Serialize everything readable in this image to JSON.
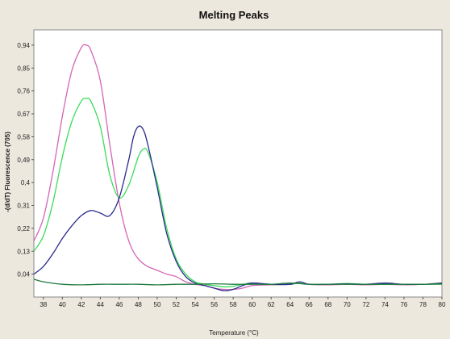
{
  "chart_data": {
    "type": "line",
    "title": "Melting Peaks",
    "xlabel": "Temperature (°C)",
    "ylabel": "-(d/dT) Fluorescence (705)",
    "xlim": [
      37,
      80
    ],
    "ylim": [
      -0.05,
      1.0
    ],
    "x_ticks": [
      "38",
      "40",
      "42",
      "44",
      "46",
      "48",
      "50",
      "52",
      "54",
      "56",
      "58",
      "60",
      "62",
      "64",
      "66",
      "68",
      "70",
      "72",
      "74",
      "76",
      "78",
      "80"
    ],
    "y_ticks": [
      "0,94",
      "0,85",
      "0,76",
      "0,67",
      "0,58",
      "0,49",
      "0,4",
      "0,31",
      "0,22",
      "0,13",
      "0,04"
    ],
    "y_tick_values": [
      0.94,
      0.85,
      0.76,
      0.67,
      0.58,
      0.49,
      0.4,
      0.31,
      0.22,
      0.13,
      0.04
    ],
    "grid": false,
    "series": [
      {
        "color": "#d466b4",
        "x": [
          37,
          38,
          39,
          40,
          41,
          42,
          42.5,
          43,
          44,
          45,
          46,
          47,
          48,
          49,
          50,
          51,
          52,
          53,
          54,
          55,
          56,
          57,
          58,
          59,
          60,
          62,
          64,
          65,
          66,
          68,
          70,
          72,
          74,
          76,
          78,
          80
        ],
        "y": [
          0.17,
          0.26,
          0.44,
          0.66,
          0.84,
          0.93,
          0.94,
          0.92,
          0.8,
          0.55,
          0.32,
          0.17,
          0.1,
          0.07,
          0.055,
          0.04,
          0.03,
          0.01,
          0.0,
          -0.005,
          -0.015,
          -0.02,
          -0.02,
          -0.015,
          -0.005,
          -0.002,
          0.0,
          0.005,
          0.0,
          -0.002,
          0.0,
          -0.002,
          0.0,
          -0.002,
          0.0,
          0.0
        ]
      },
      {
        "color": "#3adc5a",
        "x": [
          37,
          38,
          39,
          40,
          41,
          42,
          42.5,
          43,
          44,
          45,
          46,
          47,
          48,
          48.5,
          49,
          50,
          51,
          52,
          53,
          54,
          55,
          56,
          57,
          58,
          59,
          60,
          62,
          64,
          65,
          66,
          68,
          70,
          72,
          74,
          76,
          78,
          80
        ],
        "y": [
          0.13,
          0.19,
          0.32,
          0.5,
          0.64,
          0.72,
          0.73,
          0.72,
          0.62,
          0.43,
          0.34,
          0.39,
          0.5,
          0.53,
          0.52,
          0.4,
          0.22,
          0.1,
          0.04,
          0.01,
          0.0,
          -0.005,
          -0.01,
          -0.008,
          0.0,
          0.005,
          0.0,
          0.0,
          0.005,
          0.0,
          0.0,
          0.003,
          0.0,
          0.0,
          0.0,
          0.0,
          0.0
        ]
      },
      {
        "color": "#2a2a8c",
        "x": [
          37,
          38,
          39,
          40,
          41,
          42,
          43,
          44,
          45,
          46,
          47,
          47.5,
          48,
          48.5,
          49,
          50,
          51,
          52,
          53,
          54,
          55,
          56,
          57,
          58,
          59,
          60,
          62,
          64,
          65,
          66,
          68,
          70,
          72,
          74,
          76,
          78,
          80
        ],
        "y": [
          0.04,
          0.07,
          0.12,
          0.18,
          0.23,
          0.27,
          0.29,
          0.28,
          0.27,
          0.34,
          0.49,
          0.58,
          0.62,
          0.61,
          0.55,
          0.38,
          0.2,
          0.09,
          0.03,
          0.005,
          -0.005,
          -0.015,
          -0.025,
          -0.02,
          -0.005,
          0.005,
          0.0,
          0.0,
          0.01,
          0.0,
          0.0,
          0.002,
          0.0,
          0.005,
          0.0,
          0.0,
          0.005
        ]
      },
      {
        "color": "#1f7a3e",
        "x": [
          37,
          38,
          40,
          42,
          44,
          46,
          48,
          50,
          52,
          54,
          56,
          58,
          60,
          62,
          64,
          66,
          68,
          70,
          72,
          74,
          76,
          78,
          80
        ],
        "y": [
          0.02,
          0.01,
          0.0,
          -0.002,
          0.0,
          0.0,
          0.0,
          -0.002,
          0.0,
          0.0,
          0.002,
          0.0,
          0.0,
          0.0,
          0.005,
          0.0,
          0.0,
          0.0,
          0.0,
          0.0,
          0.0,
          0.0,
          0.002
        ]
      }
    ]
  }
}
